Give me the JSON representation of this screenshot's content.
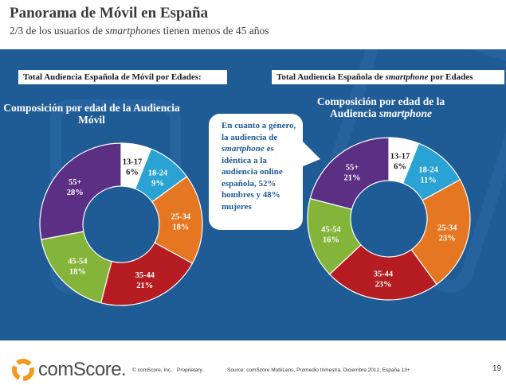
{
  "header": {
    "title": "Panorama de Móvil en España",
    "subtitle_prefix": "2/3 de los usuarios de ",
    "subtitle_em": "smartphones",
    "subtitle_suffix": " tienen menos de 45 años"
  },
  "left_panel": {
    "box_label": "Total Audiencia Española de Móvil por Edades:",
    "chart_title_line1": "Composición por edad de la Audiencia",
    "chart_title_line2": "Móvil"
  },
  "right_panel": {
    "box_label_prefix": "Total Audiencia Española de ",
    "box_label_em": "smartphone",
    "box_label_suffix": " por Edades",
    "chart_title_line1": "Composición por edad de la",
    "chart_title_line2_prefix": "Audiencia ",
    "chart_title_line2_em": "smartphone"
  },
  "callout": {
    "line_a": "En cuanto a género, la audiencia de ",
    "em": "smartphone",
    "line_b": " es idéntica a la audiencia online española, 52% hombres y 48% mujeres"
  },
  "footer": {
    "logo": "comScore.",
    "copyright": "© comScore, Inc.",
    "proprietary": "Proprietary.",
    "source": "Source: comScore MobiLens, Promedio trimestra, Diciembre  2012, España 13+",
    "page": "19"
  },
  "colors": {
    "panel_bg": "#1f5b95",
    "13-17": "#ffffff",
    "18-24": "#2aa3d4",
    "25-34": "#e57722",
    "35-44": "#b51d22",
    "45-54": "#84b53a",
    "55+": "#5a2f84"
  },
  "chart_data": [
    {
      "type": "pie",
      "title": "Composición por edad de la Audiencia Móvil",
      "categories": [
        "13-17",
        "18-24",
        "25-34",
        "35-44",
        "45-54",
        "55+"
      ],
      "values": [
        6,
        9,
        18,
        21,
        18,
        28
      ],
      "labels": [
        "6%",
        "9%",
        "18%",
        "21%",
        "18%",
        "28%"
      ]
    },
    {
      "type": "pie",
      "title": "Composición por edad de la Audiencia smartphone",
      "categories": [
        "13-17",
        "18-24",
        "25-34",
        "35-44",
        "45-54",
        "55+"
      ],
      "values": [
        6,
        11,
        23,
        23,
        16,
        21
      ],
      "labels": [
        "6%",
        "11%",
        "23%",
        "23%",
        "16%",
        "21%"
      ]
    }
  ]
}
